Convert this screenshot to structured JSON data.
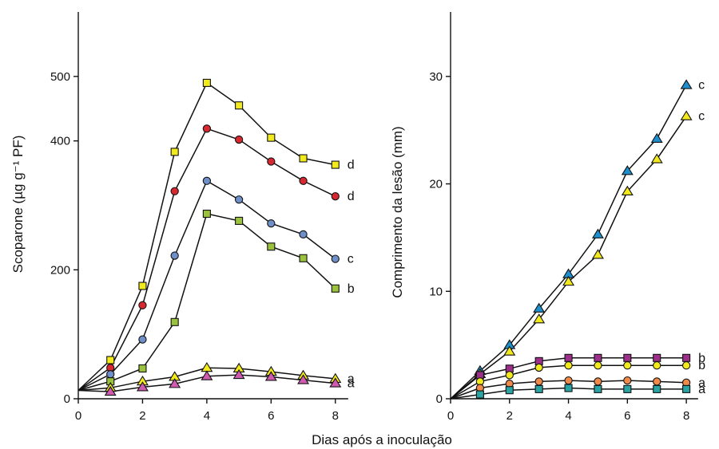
{
  "chart_data": [
    {
      "type": "line",
      "xlabel": "Dias após a inoculação",
      "ylabel": "Scoparone (µg g⁻¹ PF)",
      "xlim": [
        0,
        9
      ],
      "ylim": [
        0,
        600
      ],
      "xticks": [
        0,
        2,
        4,
        6,
        8
      ],
      "yticks": [
        0,
        200,
        400,
        500
      ],
      "grid": false,
      "series": [
        {
          "marker": "square",
          "color": "#f2ea1c",
          "label": "d",
          "x": [
            0,
            1,
            2,
            3,
            4,
            5,
            6,
            7,
            8
          ],
          "y": [
            13,
            60,
            175,
            383,
            490,
            455,
            405,
            373,
            363
          ]
        },
        {
          "marker": "circle",
          "color": "#d7282f",
          "label": "d",
          "x": [
            0,
            1,
            2,
            3,
            4,
            5,
            6,
            7,
            8
          ],
          "y": [
            13,
            48,
            145,
            322,
            419,
            402,
            368,
            338,
            314
          ]
        },
        {
          "marker": "circle",
          "color": "#6f8fc8",
          "label": "c",
          "x": [
            0,
            1,
            2,
            3,
            4,
            5,
            6,
            7,
            8
          ],
          "y": [
            13,
            38,
            92,
            222,
            338,
            309,
            272,
            255,
            217
          ]
        },
        {
          "marker": "square",
          "color": "#9ac23c",
          "label": "b",
          "x": [
            0,
            1,
            2,
            3,
            4,
            5,
            6,
            7,
            8
          ],
          "y": [
            13,
            27,
            47,
            119,
            287,
            276,
            236,
            218,
            171
          ]
        },
        {
          "marker": "triangle",
          "color": "#f2ea1c",
          "label": "a",
          "x": [
            0,
            1,
            2,
            3,
            4,
            5,
            6,
            7,
            8
          ],
          "y": [
            13,
            17,
            27,
            34,
            48,
            47,
            42,
            36,
            31
          ]
        },
        {
          "marker": "triangle",
          "color": "#d05ab0",
          "label": "a",
          "x": [
            0,
            1,
            2,
            3,
            4,
            5,
            6,
            7,
            8
          ],
          "y": [
            13,
            11,
            18,
            23,
            35,
            37,
            34,
            29,
            24
          ]
        }
      ]
    },
    {
      "type": "line",
      "xlabel": "",
      "ylabel": "Comprimento da lesão (mm)",
      "xlim": [
        0,
        9
      ],
      "ylim": [
        0,
        36
      ],
      "xticks": [
        0,
        2,
        4,
        6,
        8
      ],
      "yticks": [
        0,
        10,
        20,
        30
      ],
      "grid": false,
      "series": [
        {
          "marker": "triangle",
          "color": "#1d8fcf",
          "label": "c",
          "x": [
            0,
            1,
            2,
            3,
            4,
            5,
            6,
            7,
            8
          ],
          "y": [
            0,
            2.6,
            5.0,
            8.4,
            11.6,
            15.3,
            21.2,
            24.2,
            29.2
          ]
        },
        {
          "marker": "triangle",
          "color": "#f2ea1c",
          "label": "c",
          "x": [
            0,
            1,
            2,
            3,
            4,
            5,
            6,
            7,
            8
          ],
          "y": [
            0,
            2.3,
            4.4,
            7.4,
            10.9,
            13.4,
            19.3,
            22.3,
            26.3
          ]
        },
        {
          "marker": "square",
          "color": "#9b2f8a",
          "label": "b",
          "x": [
            0,
            1,
            2,
            3,
            4,
            5,
            6,
            7,
            8
          ],
          "y": [
            0,
            2.2,
            2.8,
            3.5,
            3.8,
            3.8,
            3.8,
            3.8,
            3.8
          ]
        },
        {
          "marker": "circle",
          "color": "#f2ea1c",
          "label": "b",
          "x": [
            0,
            1,
            2,
            3,
            4,
            5,
            6,
            7,
            8
          ],
          "y": [
            0,
            1.6,
            2.2,
            2.9,
            3.1,
            3.1,
            3.1,
            3.1,
            3.1
          ]
        },
        {
          "marker": "circle",
          "color": "#f08a4b",
          "label": "a",
          "x": [
            0,
            1,
            2,
            3,
            4,
            5,
            6,
            7,
            8
          ],
          "y": [
            0,
            1.0,
            1.4,
            1.6,
            1.7,
            1.6,
            1.7,
            1.6,
            1.5
          ]
        },
        {
          "marker": "square",
          "color": "#2aa3a3",
          "label": "a",
          "x": [
            0,
            1,
            2,
            3,
            4,
            5,
            6,
            7,
            8
          ],
          "y": [
            0,
            0.4,
            0.8,
            0.9,
            1.0,
            0.9,
            0.9,
            0.9,
            0.9
          ]
        }
      ]
    }
  ]
}
